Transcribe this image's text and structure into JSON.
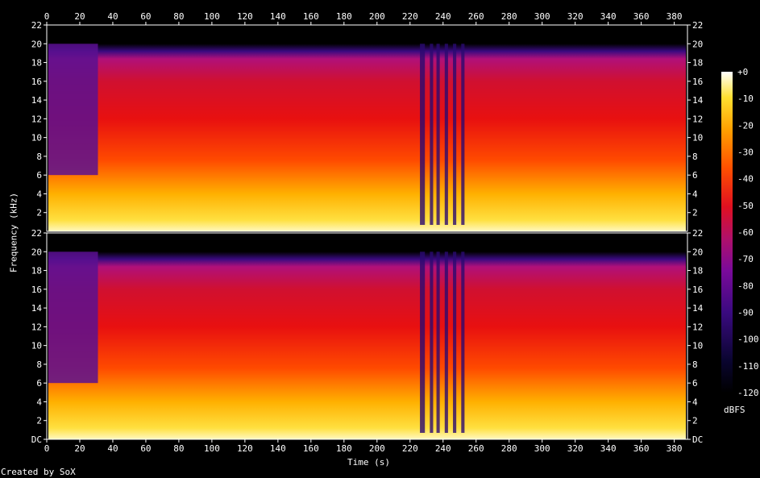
{
  "chart_data": {
    "type": "heatmap",
    "title": "",
    "xlabel": "Time (s)",
    "ylabel": "Frequency (kHz)",
    "xlim": [
      0,
      388
    ],
    "ylim": [
      0,
      22
    ],
    "x_ticks": [
      "0",
      "20",
      "40",
      "60",
      "80",
      "100",
      "120",
      "140",
      "160",
      "180",
      "200",
      "220",
      "240",
      "260",
      "280",
      "300",
      "320",
      "340",
      "360",
      "380"
    ],
    "y_ticks_top": [
      "2",
      "4",
      "6",
      "8",
      "10",
      "12",
      "14",
      "16",
      "18",
      "20",
      "22"
    ],
    "y_ticks_bottom": [
      "DC",
      "2",
      "4",
      "6",
      "8",
      "10",
      "12",
      "14",
      "16",
      "18",
      "20",
      "22"
    ],
    "channels": 2,
    "colorbar": {
      "unit": "dBFS",
      "ticks": [
        "+0",
        "-10",
        "-20",
        "-30",
        "-40",
        "-50",
        "-60",
        "-70",
        "-80",
        "-90",
        "-100",
        "-110",
        "-120"
      ],
      "range": [
        -120,
        0
      ]
    },
    "colormap": [
      "#000000",
      "#0a0530",
      "#2a0a70",
      "#4a0a9a",
      "#7a0a9a",
      "#a0107a",
      "#d0103a",
      "#f01010",
      "#ff5a00",
      "#ff9a00",
      "#ffd000",
      "#ffff60",
      "#ffffff"
    ]
  },
  "credit": "Created by SoX"
}
